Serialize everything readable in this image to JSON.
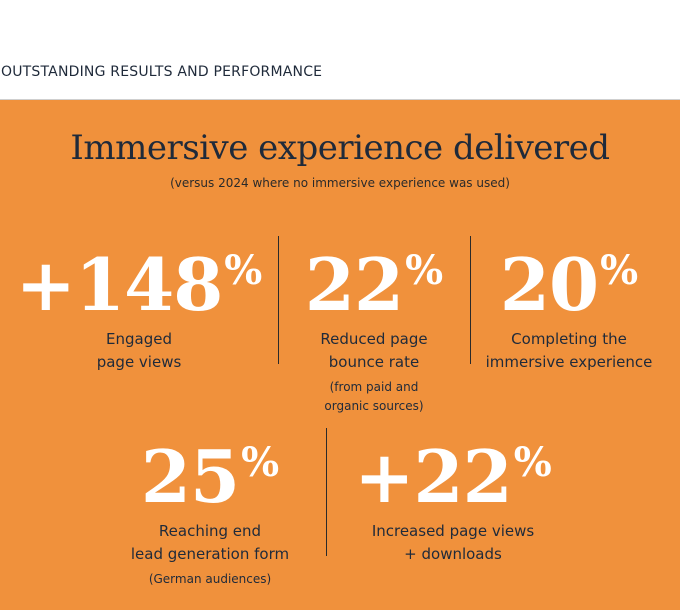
{
  "header": {
    "section_title": "OUTSTANDING RESULTS AND PERFORMANCE"
  },
  "hero": {
    "title": "Immersive experience delivered",
    "subtitle": "(versus 2024 where no immersive experience was used)"
  },
  "stats": [
    {
      "value": "+148",
      "unit": "%",
      "label_line1": "Engaged",
      "label_line2": "page views",
      "note_line1": "",
      "note_line2": ""
    },
    {
      "value": "22",
      "unit": "%",
      "label_line1": "Reduced page",
      "label_line2": "bounce rate",
      "note_line1": "(from paid and",
      "note_line2": "organic sources)"
    },
    {
      "value": "20",
      "unit": "%",
      "label_line1": "Completing the",
      "label_line2": "immersive experience",
      "note_line1": "",
      "note_line2": ""
    },
    {
      "value": "25",
      "unit": "%",
      "label_line1": "Reaching end",
      "label_line2": "lead generation form",
      "note_line1": "(German audiences)",
      "note_line2": ""
    },
    {
      "value": "+22",
      "unit": "%",
      "label_line1": "Increased page views",
      "label_line2": "+ downloads",
      "note_line1": "",
      "note_line2": ""
    }
  ],
  "colors": {
    "panel_background": "#f0913c",
    "value_text": "#ffffff",
    "body_text": "#1f2a3a"
  }
}
